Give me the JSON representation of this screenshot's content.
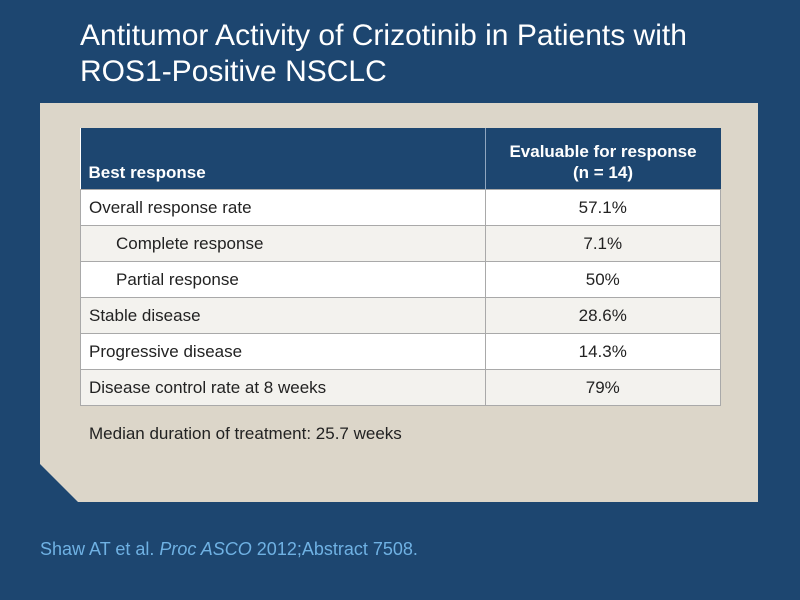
{
  "title": {
    "line1": "Antitumor Activity of Crizotinib in Patients with",
    "line2": "ROS1-Positive NSCLC"
  },
  "table": {
    "headers": {
      "col1": "Best response",
      "col2_line1": "Evaluable for response",
      "col2_line2": "(n = 14)"
    },
    "rows": [
      {
        "label": "Overall response rate",
        "value": "57.1%"
      },
      {
        "label": "Complete response",
        "value": "7.1%"
      },
      {
        "label": "Partial response",
        "value": "50%"
      },
      {
        "label": "Stable disease",
        "value": "28.6%"
      },
      {
        "label": "Progressive disease",
        "value": "14.3%"
      },
      {
        "label": "Disease control rate at 8 weeks",
        "value": "79%"
      }
    ]
  },
  "note": "Median duration of treatment: 25.7 weeks",
  "citation": {
    "authors": "Shaw AT et al.",
    "journal": "Proc ASCO",
    "details": "2012;Abstract 7508."
  },
  "colors": {
    "background": "#1d4670",
    "panel": "#dcd6c9",
    "citation": "#6fb1e3"
  }
}
